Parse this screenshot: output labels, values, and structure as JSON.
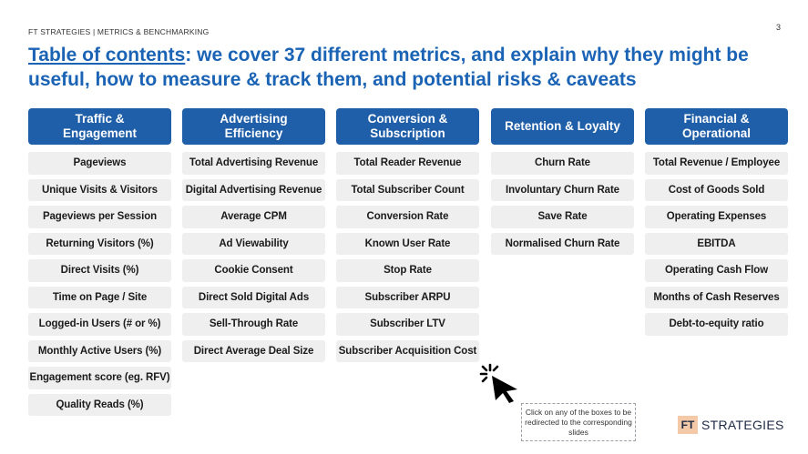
{
  "header": {
    "breadcrumb": "FT STRATEGIES  | METRICS & BENCHMARKING",
    "page_number": "3"
  },
  "title": {
    "link_text": "Table of contents",
    "rest": ": we cover 37 different metrics, and explain why they might be useful, how to measure & track them, and potential risks & caveats"
  },
  "columns": [
    {
      "heading": "Traffic &\nEngagement",
      "items": [
        "Pageviews",
        "Unique Visits & Visitors",
        "Pageviews per Session",
        "Returning Visitors (%)",
        "Direct Visits (%)",
        "Time on Page / Site",
        "Logged-in Users (# or %)",
        "Monthly Active Users (%)",
        "Engagement score (eg. RFV)",
        "Quality Reads (%)"
      ]
    },
    {
      "heading": "Advertising\nEfficiency",
      "items": [
        "Total Advertising Revenue",
        "Digital Advertising Revenue",
        "Average CPM",
        "Ad Viewability",
        "Cookie Consent",
        "Direct Sold Digital Ads",
        "Sell-Through Rate",
        "Direct Average Deal Size"
      ]
    },
    {
      "heading": "Conversion &\nSubscription",
      "items": [
        "Total Reader Revenue",
        "Total Subscriber Count",
        "Conversion Rate",
        "Known User Rate",
        "Stop Rate",
        "Subscriber ARPU",
        "Subscriber LTV",
        "Subscriber Acquisition Cost"
      ]
    },
    {
      "heading": "Retention & Loyalty",
      "items": [
        "Churn Rate",
        "Involuntary Churn Rate",
        "Save Rate",
        "Normalised Churn Rate"
      ]
    },
    {
      "heading": "Financial &\nOperational",
      "items": [
        "Total Revenue / Employee",
        "Cost of Goods Sold",
        "Operating Expenses",
        "EBITDA",
        "Operating Cash Flow",
        "Months of Cash Reserves",
        "Debt-to-equity ratio"
      ]
    }
  ],
  "note": "Click on any of the boxes to be redirected to the corresponding slides",
  "logo": {
    "mark": "FT",
    "text": "STRATEGIES"
  },
  "colors": {
    "accent": "#1a63b5",
    "header_fill": "#1f5ea8",
    "item_fill": "#efefef"
  },
  "icons": {
    "cursor": "click-cursor-icon"
  }
}
